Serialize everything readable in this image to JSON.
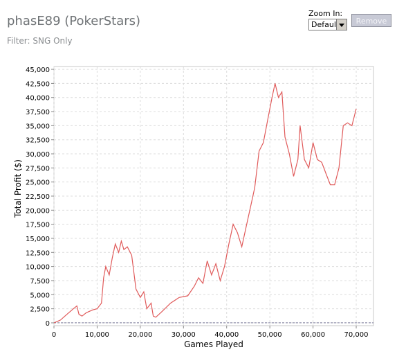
{
  "header": {
    "title": "phasE89 (PokerStars)",
    "filter": "Filter: SNG Only"
  },
  "zoom": {
    "label": "Zoom In:",
    "selected": "Default"
  },
  "remove_label": "Remove",
  "chart_data": {
    "type": "line",
    "xlabel": "Games Played",
    "ylabel": "Total Profit ($)",
    "xlim": [
      0,
      74000
    ],
    "ylim": [
      -500,
      45500
    ],
    "x_ticks": [
      0,
      10000,
      20000,
      30000,
      40000,
      50000,
      60000,
      70000
    ],
    "x_tick_labels": [
      "0",
      "10,000",
      "20,000",
      "30,000",
      "40,000",
      "50,000",
      "60,000",
      "70,000"
    ],
    "y_ticks": [
      0,
      2500,
      5000,
      7500,
      10000,
      12500,
      15000,
      17500,
      20000,
      22500,
      25000,
      27500,
      30000,
      32500,
      35000,
      37500,
      40000,
      42500,
      45000
    ],
    "y_tick_labels": [
      "0",
      "2,500",
      "5,000",
      "7,500",
      "10,000",
      "12,500",
      "15,000",
      "17,500",
      "20,000",
      "22,500",
      "25,000",
      "27,500",
      "30,000",
      "32,500",
      "35,000",
      "37,500",
      "40,000",
      "42,500",
      "45,000"
    ],
    "grid": true,
    "line_color": "#e05a5a",
    "zero_line_color": "#7a7a9a",
    "series": [
      {
        "x": [
          0,
          1500,
          3000,
          4500,
          5300,
          5800,
          6500,
          7500,
          9000,
          10000,
          11000,
          11500,
          12000,
          12800,
          13500,
          14200,
          15000,
          15600,
          16200,
          17000,
          18000,
          19000,
          20000,
          20800,
          21500,
          22500,
          23000,
          23600,
          25000,
          27000,
          29000,
          31000,
          32500,
          33500,
          34500,
          35500,
          36500,
          37500,
          38500,
          39500,
          40500,
          41500,
          42500,
          43500,
          44500,
          45500,
          46500,
          47500,
          48500,
          49500,
          50500,
          51200,
          52000,
          52800,
          53500,
          54500,
          55500,
          56500,
          57000,
          58000,
          59000,
          60000,
          61000,
          62000,
          63000,
          64000,
          65000,
          66000,
          67000,
          68000,
          69000,
          70000
        ],
        "y": [
          0,
          500,
          1500,
          2500,
          3000,
          1500,
          1200,
          1800,
          2300,
          2500,
          3500,
          8000,
          10000,
          8500,
          11500,
          14000,
          12500,
          14500,
          13000,
          13500,
          12000,
          6000,
          4500,
          5500,
          2500,
          3500,
          1200,
          1000,
          2000,
          3500,
          4500,
          4800,
          6500,
          8000,
          7000,
          11000,
          8500,
          10500,
          7500,
          10000,
          14000,
          17500,
          16000,
          13500,
          17000,
          20500,
          24000,
          30500,
          32000,
          36000,
          40000,
          42500,
          40000,
          41000,
          33000,
          30000,
          26000,
          29000,
          35000,
          29000,
          27500,
          32000,
          29000,
          28500,
          26500,
          24500,
          24500,
          27500,
          35000,
          35500,
          35000,
          38000
        ]
      }
    ]
  }
}
